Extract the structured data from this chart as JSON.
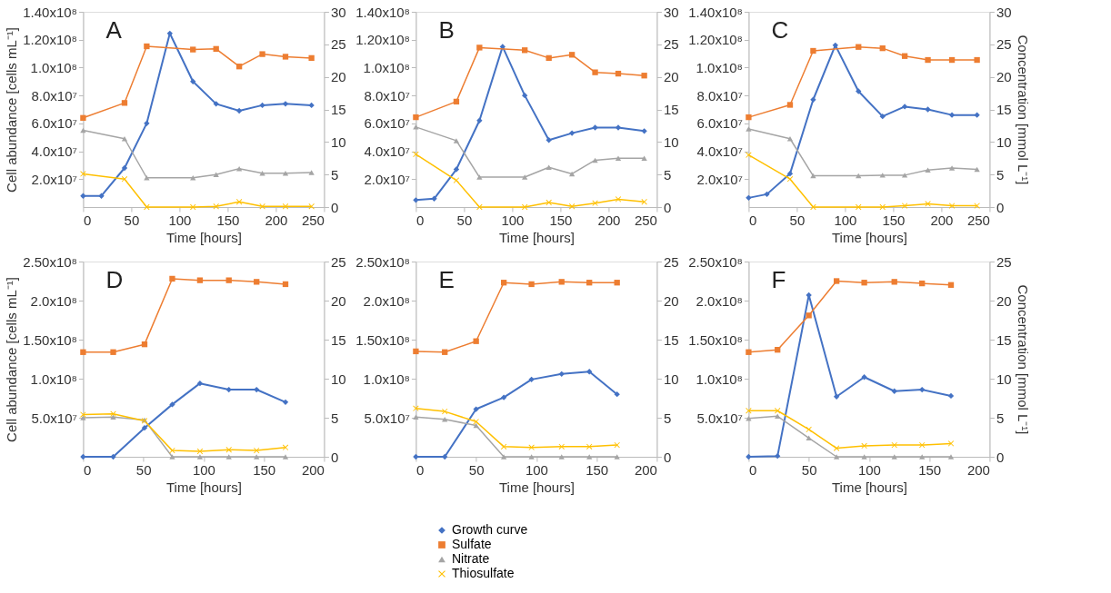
{
  "chart_data": [
    {
      "type": "line",
      "annotations": [
        "A"
      ],
      "xlabel": "Time  [hours]",
      "ylabel": "Cell abundance [cells mL⁻¹]",
      "xlim": [
        0,
        250
      ],
      "xticks": [
        0,
        50,
        100,
        150,
        200,
        250
      ],
      "ylim": [
        0,
        140000000
      ],
      "yticks": [
        {
          "value": 20000000,
          "label": "2.0x10⁷"
        },
        {
          "value": 40000000,
          "label": "4.0x10⁷"
        },
        {
          "value": 60000000,
          "label": "6.0x10⁷"
        },
        {
          "value": 80000000,
          "label": "8.0x10⁷"
        },
        {
          "value": 100000000,
          "label": "1.0x10⁸"
        },
        {
          "value": 120000000,
          "label": "1.20x10⁸"
        },
        {
          "value": 140000000,
          "label": "1.40x10⁸"
        }
      ],
      "y2lim": [
        0,
        30
      ],
      "y2ticks": [
        0,
        5,
        10,
        15,
        20,
        25,
        30
      ],
      "grid": false,
      "legend": false,
      "line_style": "solid",
      "series": [
        {
          "color": "#4472c4",
          "marker": "diamond",
          "x": [
            0,
            19,
            43,
            66,
            90,
            114,
            138,
            162,
            186,
            210,
            237
          ],
          "values": [
            8000000,
            8000000,
            28000000,
            60000000,
            124500000,
            90000000,
            74000000,
            69000000,
            73000000,
            74000000,
            73000000
          ]
        },
        {
          "color": "#ed7d31",
          "marker": "square",
          "axis": "y2",
          "x": [
            0,
            43,
            66,
            114,
            138,
            162,
            186,
            210,
            237
          ],
          "values": [
            13.7,
            16.0,
            24.7,
            24.2,
            24.3,
            21.6,
            23.5,
            23.1,
            22.9
          ]
        },
        {
          "color": "#a5a5a5",
          "marker": "triangle",
          "axis": "y2",
          "x": [
            0,
            43,
            66,
            114,
            138,
            162,
            186,
            210,
            237
          ],
          "values": [
            11.8,
            10.5,
            4.5,
            4.5,
            5.0,
            5.9,
            5.2,
            5.2,
            5.3
          ]
        },
        {
          "color": "#ffc000",
          "marker": "cross",
          "axis": "y2",
          "x": [
            0,
            43,
            66,
            114,
            138,
            162,
            186,
            210,
            237
          ],
          "values": [
            5.1,
            4.3,
            0,
            0,
            0.1,
            0.8,
            0.1,
            0.1,
            0.1
          ]
        }
      ]
    },
    {
      "type": "line",
      "annotations": [
        "B"
      ],
      "xlabel": "Time  [hours]",
      "xlim": [
        0,
        250
      ],
      "xticks": [
        0,
        50,
        100,
        150,
        200,
        250
      ],
      "ylim": [
        0,
        140000000
      ],
      "yticks": [
        {
          "value": 20000000,
          "label": "2.0x10⁷"
        },
        {
          "value": 40000000,
          "label": "4.0x10⁷"
        },
        {
          "value": 60000000,
          "label": "6.0x10⁷"
        },
        {
          "value": 80000000,
          "label": "8.0x10⁷"
        },
        {
          "value": 100000000,
          "label": "1.0x10⁸"
        },
        {
          "value": 120000000,
          "label": "1.20x10⁸"
        },
        {
          "value": 140000000,
          "label": "1.40x10⁸"
        }
      ],
      "y2lim": [
        0,
        30
      ],
      "y2ticks": [
        0,
        5,
        10,
        15,
        20,
        25,
        30
      ],
      "grid": false,
      "legend": false,
      "line_style": "solid",
      "series": [
        {
          "color": "#4472c4",
          "marker": "diamond",
          "x": [
            0,
            19,
            42,
            66,
            90,
            113,
            138,
            162,
            186,
            210,
            237
          ],
          "values": [
            5000000,
            6000000,
            27000000,
            62000000,
            115000000,
            80000000,
            48000000,
            53000000,
            57000000,
            57000000,
            54500000
          ]
        },
        {
          "color": "#ed7d31",
          "marker": "square",
          "axis": "y2",
          "x": [
            0,
            42,
            66,
            113,
            138,
            162,
            186,
            210,
            237
          ],
          "values": [
            13.8,
            16.2,
            24.5,
            24.1,
            22.9,
            23.4,
            20.7,
            20.5,
            20.2
          ]
        },
        {
          "color": "#a5a5a5",
          "marker": "triangle",
          "axis": "y2",
          "x": [
            0,
            42,
            66,
            113,
            138,
            162,
            186,
            210,
            237
          ],
          "values": [
            12.3,
            10.2,
            4.6,
            4.6,
            6.1,
            5.1,
            7.2,
            7.5,
            7.5
          ]
        },
        {
          "color": "#ffc000",
          "marker": "cross",
          "axis": "y2",
          "x": [
            0,
            42,
            66,
            113,
            138,
            162,
            186,
            210,
            237
          ],
          "values": [
            8.1,
            4.1,
            0,
            0,
            0.7,
            0.1,
            0.6,
            1.2,
            0.8
          ]
        }
      ]
    },
    {
      "type": "line",
      "annotations": [
        "C"
      ],
      "xlabel": "Time  [hours]",
      "y2label": "Concentration [mmol L⁻¹]",
      "xlim": [
        0,
        250
      ],
      "xticks": [
        0,
        50,
        100,
        150,
        200,
        250
      ],
      "ylim": [
        0,
        140000000
      ],
      "yticks": [
        {
          "value": 20000000,
          "label": "2.0x10⁷"
        },
        {
          "value": 40000000,
          "label": "4.0x10⁷"
        },
        {
          "value": 60000000,
          "label": "6.0x10⁷"
        },
        {
          "value": 80000000,
          "label": "8.0x10⁷"
        },
        {
          "value": 100000000,
          "label": "1.0x10⁸"
        },
        {
          "value": 120000000,
          "label": "1.20x10⁸"
        },
        {
          "value": 140000000,
          "label": "1.40x10⁸"
        }
      ],
      "y2lim": [
        0,
        30
      ],
      "y2ticks": [
        0,
        5,
        10,
        15,
        20,
        25,
        30
      ],
      "grid": false,
      "legend": false,
      "line_style": "solid",
      "series": [
        {
          "color": "#4472c4",
          "marker": "diamond",
          "x": [
            0,
            19,
            43,
            67,
            90,
            114,
            139,
            162,
            186,
            211,
            237
          ],
          "values": [
            6600000,
            9200000,
            24000000,
            77000000,
            116000000,
            83000000,
            65000000,
            72000000,
            70000000,
            66000000,
            66000000
          ]
        },
        {
          "color": "#ed7d31",
          "marker": "square",
          "axis": "y2",
          "x": [
            0,
            43,
            67,
            114,
            139,
            162,
            186,
            211,
            237
          ],
          "values": [
            13.8,
            15.7,
            24.0,
            24.6,
            24.4,
            23.2,
            22.6,
            22.6,
            22.6
          ]
        },
        {
          "color": "#a5a5a5",
          "marker": "triangle",
          "axis": "y2",
          "x": [
            0,
            43,
            67,
            114,
            139,
            162,
            186,
            211,
            237
          ],
          "values": [
            12.0,
            10.5,
            4.8,
            4.8,
            4.9,
            4.9,
            5.7,
            6.0,
            5.8
          ]
        },
        {
          "color": "#ffc000",
          "marker": "cross",
          "axis": "y2",
          "x": [
            0,
            43,
            67,
            114,
            139,
            162,
            186,
            211,
            237
          ],
          "values": [
            8.0,
            4.3,
            0,
            0,
            0,
            0.2,
            0.5,
            0.2,
            0.2
          ]
        }
      ]
    },
    {
      "type": "line",
      "annotations": [
        "D"
      ],
      "xlabel": "Time  [hours]",
      "ylabel": "Cell abundance [cells mL⁻¹]",
      "xlim": [
        0,
        200
      ],
      "xticks": [
        0,
        50,
        100,
        150,
        200
      ],
      "ylim": [
        0,
        250000000
      ],
      "yticks": [
        {
          "value": 50000000,
          "label": "5.0x10⁷"
        },
        {
          "value": 100000000,
          "label": "1.0x10⁸"
        },
        {
          "value": 150000000,
          "label": "1.50x10⁸"
        },
        {
          "value": 200000000,
          "label": "2.0x10⁸"
        },
        {
          "value": 250000000,
          "label": "2.50x10⁸"
        }
      ],
      "y2lim": [
        0,
        25
      ],
      "y2ticks": [
        0,
        5,
        10,
        15,
        20,
        25
      ],
      "grid": false,
      "legend": false,
      "line_style": "solid",
      "series": [
        {
          "color": "#4472c4",
          "marker": "diamond",
          "x": [
            0,
            25,
            51,
            74,
            97,
            121,
            144,
            168
          ],
          "values": [
            0,
            0,
            37000000,
            67000000,
            94000000,
            86000000,
            86000000,
            70000000
          ]
        },
        {
          "color": "#ed7d31",
          "marker": "square",
          "axis": "y2",
          "x": [
            0,
            25,
            51,
            74,
            97,
            121,
            144,
            168
          ],
          "values": [
            13.4,
            13.4,
            14.4,
            22.8,
            22.6,
            22.6,
            22.4,
            22.1
          ]
        },
        {
          "color": "#a5a5a5",
          "marker": "triangle",
          "axis": "y2",
          "x": [
            0,
            25,
            51,
            74,
            97,
            121,
            144,
            168
          ],
          "values": [
            5.0,
            5.1,
            4.7,
            0,
            0,
            0,
            0,
            0
          ]
        },
        {
          "color": "#ffc000",
          "marker": "cross",
          "axis": "y2",
          "x": [
            0,
            25,
            51,
            74,
            97,
            121,
            144,
            168
          ],
          "values": [
            5.4,
            5.5,
            4.6,
            0.8,
            0.7,
            0.9,
            0.8,
            1.2
          ]
        }
      ]
    },
    {
      "type": "line",
      "annotations": [
        "E"
      ],
      "xlabel": "Time  [hours]",
      "xlim": [
        0,
        200
      ],
      "xticks": [
        0,
        50,
        100,
        150,
        200
      ],
      "ylim": [
        0,
        250000000
      ],
      "yticks": [
        {
          "value": 50000000,
          "label": "5.0x10⁷"
        },
        {
          "value": 100000000,
          "label": "1.0x10⁸"
        },
        {
          "value": 150000000,
          "label": "1.50x10⁸"
        },
        {
          "value": 200000000,
          "label": "2.0x10⁸"
        },
        {
          "value": 250000000,
          "label": "2.50x10⁸"
        }
      ],
      "y2lim": [
        0,
        25
      ],
      "y2ticks": [
        0,
        5,
        10,
        15,
        20,
        25
      ],
      "grid": false,
      "legend": "bottom",
      "line_style": "solid",
      "series": [
        {
          "name": "Growth curve",
          "color": "#4472c4",
          "marker": "diamond",
          "x": [
            0,
            24,
            50,
            73,
            96,
            121,
            144,
            167
          ],
          "values": [
            0,
            0,
            61000000,
            76000000,
            99000000,
            106000000,
            109000000,
            80000000
          ]
        },
        {
          "name": "Sulfate",
          "color": "#ed7d31",
          "marker": "square",
          "axis": "y2",
          "x": [
            0,
            24,
            50,
            73,
            96,
            121,
            144,
            167
          ],
          "values": [
            13.5,
            13.4,
            14.8,
            22.3,
            22.1,
            22.4,
            22.3,
            22.3
          ]
        },
        {
          "name": "Nitrate",
          "color": "#a5a5a5",
          "marker": "triangle",
          "axis": "y2",
          "x": [
            0,
            24,
            50,
            73,
            96,
            121,
            144,
            167
          ],
          "values": [
            5.1,
            4.8,
            4.0,
            0,
            0,
            0,
            0,
            0
          ]
        },
        {
          "name": "Thiosulfate",
          "color": "#ffc000",
          "marker": "cross",
          "axis": "y2",
          "x": [
            0,
            24,
            50,
            73,
            96,
            121,
            144,
            167
          ],
          "values": [
            6.2,
            5.8,
            4.5,
            1.3,
            1.2,
            1.3,
            1.3,
            1.5
          ]
        }
      ]
    },
    {
      "type": "line",
      "annotations": [
        "F"
      ],
      "xlabel": "Time  [hours]",
      "y2label": "Concentration [mmol L⁻¹]",
      "xlim": [
        0,
        200
      ],
      "xticks": [
        0,
        50,
        100,
        150,
        200
      ],
      "ylim": [
        0,
        250000000
      ],
      "yticks": [
        {
          "value": 50000000,
          "label": "5.0x10⁷"
        },
        {
          "value": 100000000,
          "label": "1.0x10⁸"
        },
        {
          "value": 150000000,
          "label": "1.50x10⁸"
        },
        {
          "value": 200000000,
          "label": "2.0x10⁸"
        },
        {
          "value": 250000000,
          "label": "2.50x10⁸"
        }
      ],
      "y2lim": [
        0,
        25
      ],
      "y2ticks": [
        0,
        5,
        10,
        15,
        20,
        25
      ],
      "grid": false,
      "legend": false,
      "line_style": "solid",
      "series": [
        {
          "color": "#4472c4",
          "marker": "diamond",
          "x": [
            0,
            24,
            50,
            73,
            96,
            121,
            144,
            168
          ],
          "values": [
            0,
            1000000,
            207000000,
            77000000,
            102000000,
            84000000,
            86000000,
            78000000
          ]
        },
        {
          "color": "#ed7d31",
          "marker": "square",
          "axis": "y2",
          "x": [
            0,
            24,
            50,
            73,
            96,
            121,
            144,
            168
          ],
          "values": [
            13.4,
            13.7,
            18.1,
            22.5,
            22.3,
            22.4,
            22.2,
            22.0
          ]
        },
        {
          "color": "#a5a5a5",
          "marker": "triangle",
          "axis": "y2",
          "x": [
            0,
            24,
            50,
            73,
            96,
            121,
            144,
            168
          ],
          "values": [
            4.9,
            5.2,
            2.4,
            0,
            0,
            0,
            0,
            0
          ]
        },
        {
          "color": "#ffc000",
          "marker": "cross",
          "axis": "y2",
          "x": [
            0,
            24,
            50,
            73,
            96,
            121,
            144,
            168
          ],
          "values": [
            5.9,
            5.9,
            3.5,
            1.1,
            1.4,
            1.5,
            1.5,
            1.7
          ]
        }
      ]
    }
  ]
}
